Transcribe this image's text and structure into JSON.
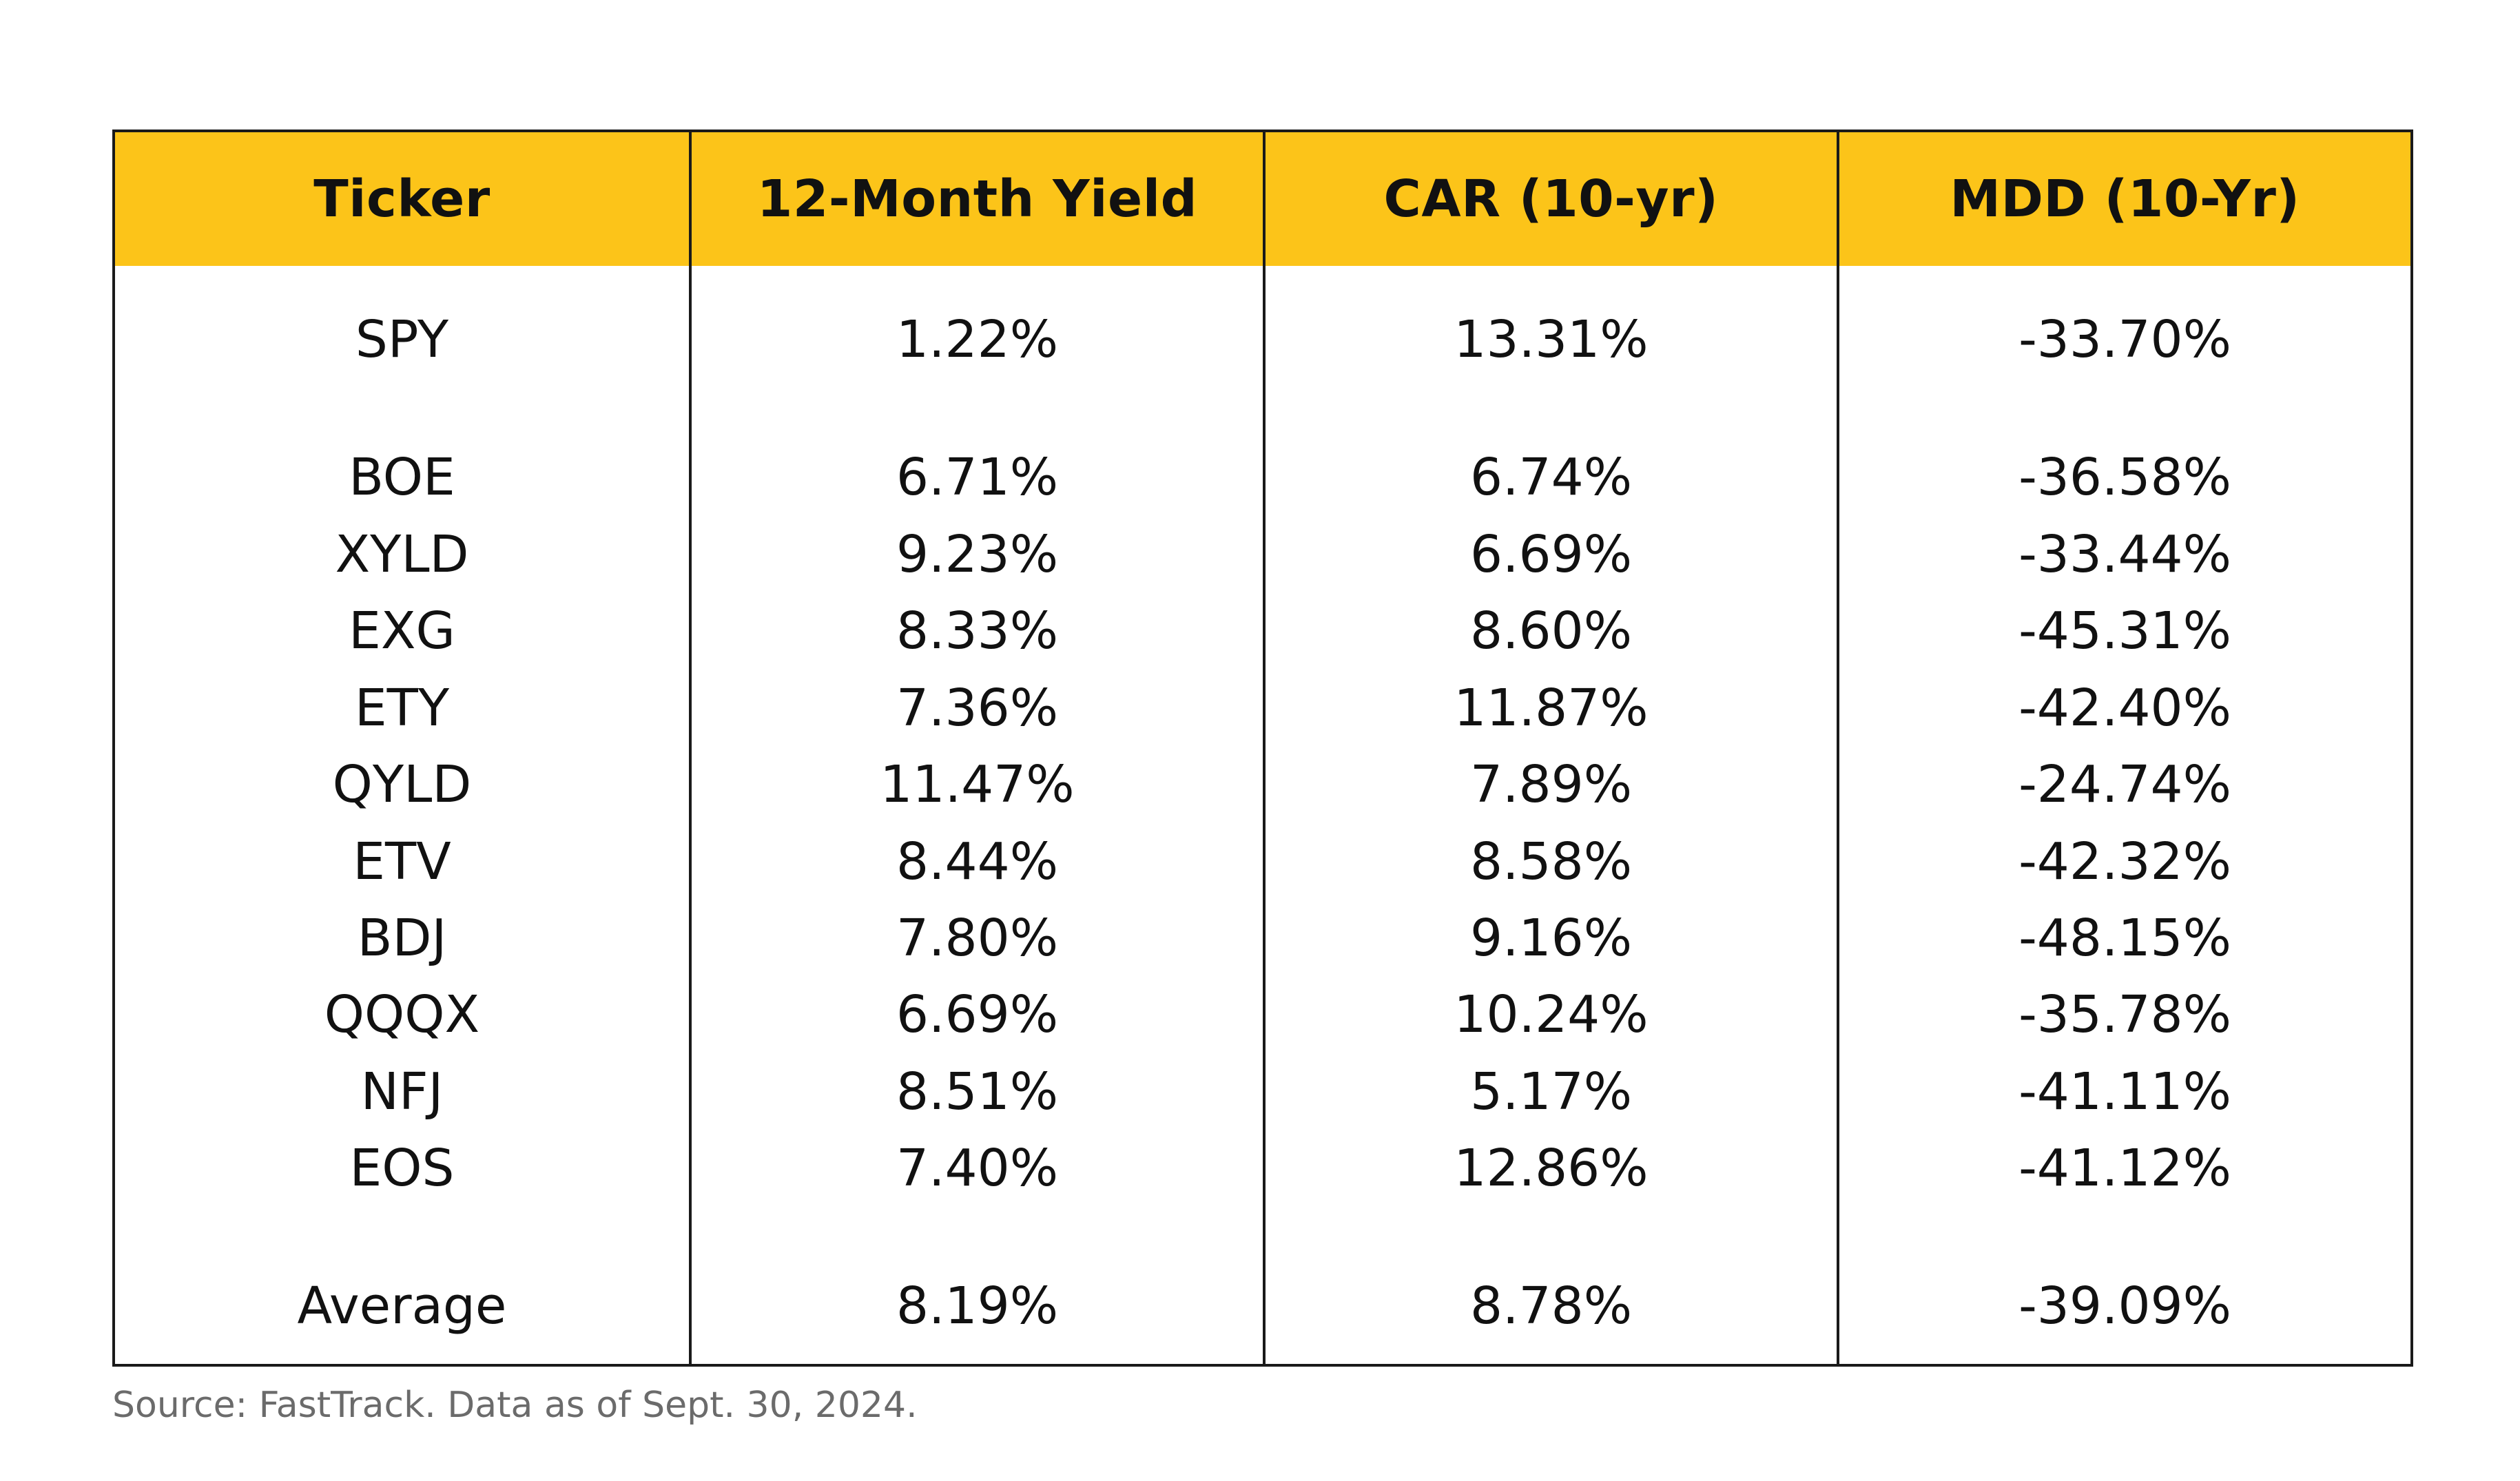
{
  "colors": {
    "header_fill": "#FCC419",
    "border": "#1a1a1a",
    "text": "#111111",
    "source_text": "#6b6b6b"
  },
  "chart_data": {
    "type": "table",
    "columns": [
      "Ticker",
      "12-Month Yield",
      "CAR (10-yr)",
      "MDD (10-Yr)"
    ],
    "rows": [
      [
        "SPY",
        "1.22%",
        "13.31%",
        "-33.70%"
      ],
      [
        "BOE",
        "6.71%",
        "6.74%",
        "-36.58%"
      ],
      [
        "XYLD",
        "9.23%",
        "6.69%",
        "-33.44%"
      ],
      [
        "EXG",
        "8.33%",
        "8.60%",
        "-45.31%"
      ],
      [
        "ETY",
        "7.36%",
        "11.87%",
        "-42.40%"
      ],
      [
        "QYLD",
        "11.47%",
        "7.89%",
        "-24.74%"
      ],
      [
        "ETV",
        "8.44%",
        "8.58%",
        "-42.32%"
      ],
      [
        "BDJ",
        "7.80%",
        "9.16%",
        "-48.15%"
      ],
      [
        "QQQX",
        "6.69%",
        "10.24%",
        "-35.78%"
      ],
      [
        "NFJ",
        "8.51%",
        "5.17%",
        "-41.11%"
      ],
      [
        "EOS",
        "7.40%",
        "12.86%",
        "-41.12%"
      ],
      [
        "Average",
        "8.19%",
        "8.78%",
        "-39.09%"
      ]
    ]
  },
  "footer": {
    "source": "Source: FastTrack. Data as of Sept. 30, 2024."
  }
}
